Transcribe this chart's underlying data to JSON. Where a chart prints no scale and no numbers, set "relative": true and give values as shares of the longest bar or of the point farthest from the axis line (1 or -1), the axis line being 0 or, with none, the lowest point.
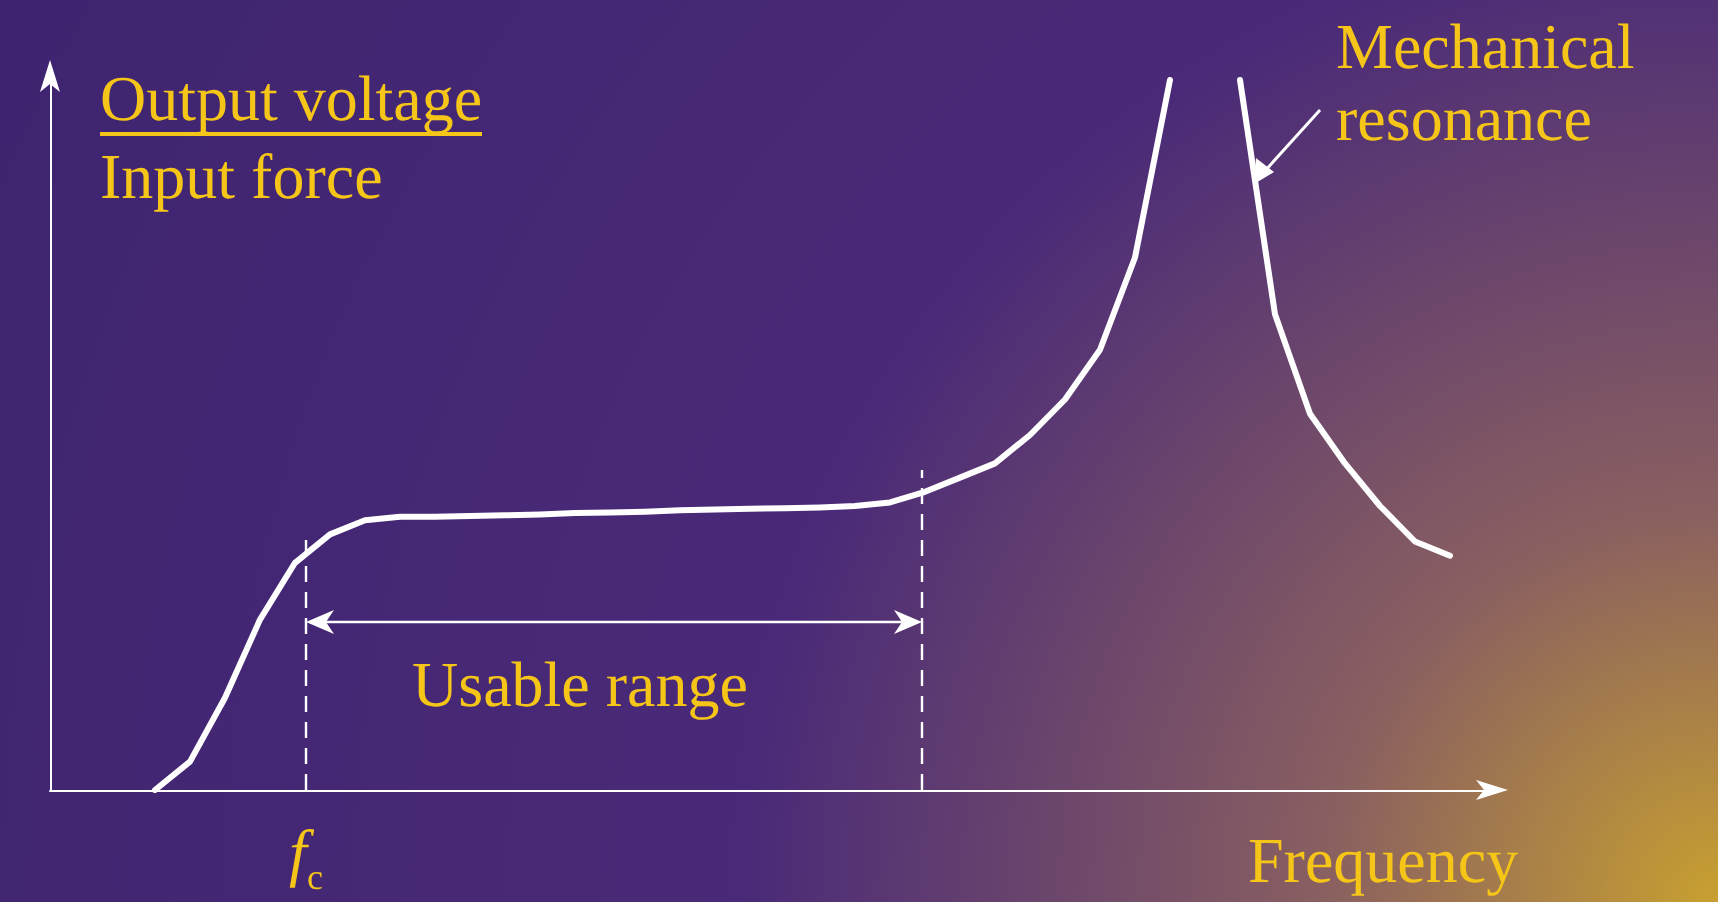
{
  "chart_data": {
    "type": "line",
    "relative": true,
    "xlabel": "Frequency",
    "ylabel": "Output voltage\nInput force",
    "categories": [
      null,
      null,
      null,
      null,
      null,
      null,
      null,
      null,
      null,
      null,
      null,
      null,
      null,
      null,
      null,
      null,
      null,
      null,
      null,
      null,
      null,
      null,
      null,
      null,
      null,
      null,
      null,
      null,
      null,
      null,
      null,
      null,
      null,
      null,
      null,
      null,
      null,
      null,
      null,
      null,
      null,
      null
    ],
    "series": [
      {
        "color": "#ffffff",
        "values": [
          null,
          null,
          null,
          0,
          0.04,
          0.13,
          0.24,
          0.32,
          0.36,
          0.38,
          0.385,
          0.385,
          0.386,
          0.387,
          0.388,
          0.39,
          0.391,
          0.392,
          0.394,
          0.395,
          0.396,
          0.397,
          0.398,
          0.4,
          0.405,
          0.42,
          0.44,
          0.46,
          0.5,
          0.55,
          0.62,
          0.75,
          1,
          null,
          null,
          null,
          null,
          null,
          null,
          null,
          null,
          null
        ]
      },
      {
        "color": "#ffffff",
        "values": [
          null,
          null,
          null,
          null,
          null,
          null,
          null,
          null,
          null,
          null,
          null,
          null,
          null,
          null,
          null,
          null,
          null,
          null,
          null,
          null,
          null,
          null,
          null,
          null,
          null,
          null,
          null,
          null,
          null,
          null,
          null,
          null,
          null,
          null,
          1,
          0.67,
          0.53,
          0.46,
          0.4,
          0.35,
          0.33,
          null
        ]
      }
    ],
    "annotations": [
      "Usable range",
      "Mechanical\nresonance",
      "f$_{c}$"
    ],
    "marker": "none",
    "line_style": "solid",
    "grid": false
  }
}
